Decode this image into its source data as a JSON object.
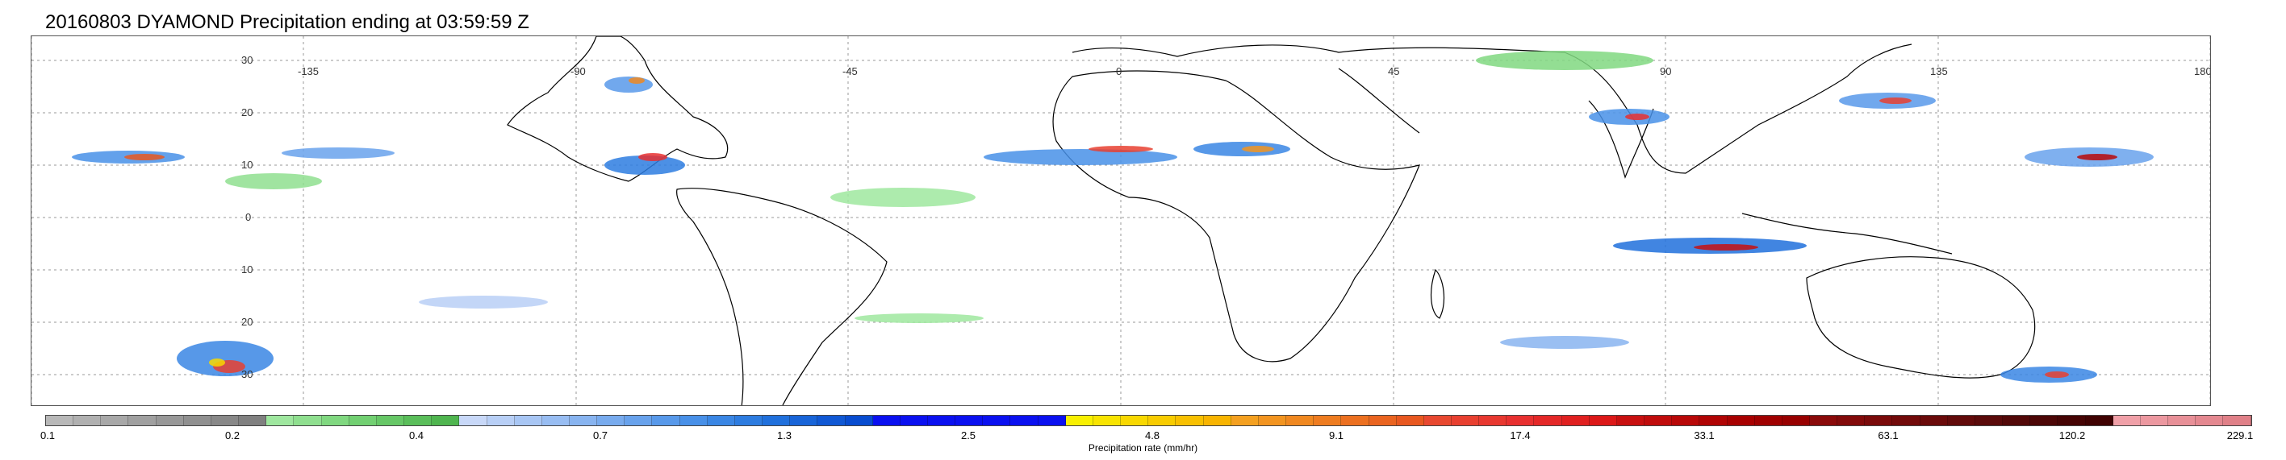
{
  "title": "20160803 DYAMOND Precipitation ending at 03:59:59 Z",
  "map": {
    "lat_labels": [
      "30",
      "20",
      "10",
      "0",
      "10",
      "20",
      "30"
    ],
    "lon_labels": [
      "-135",
      "-90",
      "-45",
      "0",
      "45",
      "90",
      "135",
      "180"
    ],
    "gridline_style": "dotted"
  },
  "colorbar": {
    "label": "Precipitation rate (mm/hr)",
    "tick_labels": [
      "0.1",
      "0.2",
      "0.4",
      "0.7",
      "1.3",
      "2.5",
      "4.8",
      "9.1",
      "17.4",
      "33.1",
      "63.1",
      "120.2",
      "229.1"
    ],
    "colors": [
      "#b8b8b8",
      "#b0b0b0",
      "#a8a8a8",
      "#a0a0a0",
      "#989898",
      "#909090",
      "#888888",
      "#808080",
      "#9fe79f",
      "#8fdf8f",
      "#80d880",
      "#72d072",
      "#66c766",
      "#5abe5a",
      "#4fb54f",
      "#c8d8f8",
      "#b8cff6",
      "#a8c6f4",
      "#98bdf2",
      "#88b4f0",
      "#78abee",
      "#68a2ec",
      "#5899ea",
      "#4890e8",
      "#3a86e4",
      "#2d7ce0",
      "#2070dc",
      "#1864d8",
      "#1058d4",
      "#084cd0",
      "#0a10f0",
      "#0a10f0",
      "#0a10f0",
      "#0a10f0",
      "#0a10f0",
      "#0a10f0",
      "#0a10f0",
      "#f8f000",
      "#f8e400",
      "#f8d800",
      "#f8cc00",
      "#f8c000",
      "#f8b400",
      "#f4a020",
      "#f29420",
      "#f08820",
      "#ee7c20",
      "#ec7020",
      "#ea6420",
      "#e85820",
      "#e84830",
      "#e84030",
      "#e83830",
      "#e83030",
      "#e42828",
      "#e02020",
      "#dc1818",
      "#c81010",
      "#c00c0c",
      "#b80808",
      "#b00404",
      "#a80000",
      "#a00000",
      "#980000",
      "#8a0a0a",
      "#820a0a",
      "#7a0a0a",
      "#720a0a",
      "#6a0a0a",
      "#620a0a",
      "#5a0a0a",
      "#520808",
      "#4c0606",
      "#460404",
      "#400202",
      "#f0a0a8",
      "#ec98a0",
      "#e89098",
      "#e48890",
      "#e08088"
    ]
  }
}
